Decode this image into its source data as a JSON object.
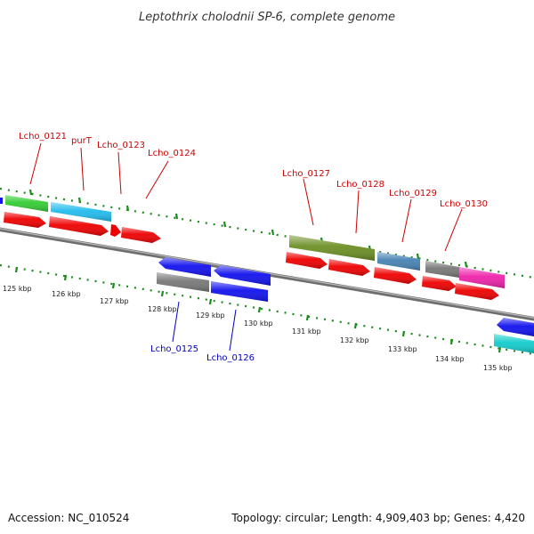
{
  "title": "Leptothrix cholodnii SP-6, complete genome",
  "footer": {
    "accession": "Accession: NC_010524",
    "topology": "Topology: circular; Length: 4,909,403 bp; Genes: 4,420"
  },
  "colors": {
    "label_forward": "#cc0000",
    "label_reverse": "#0000bb",
    "tick_green": "#1a8a1a",
    "backbone": "#777777"
  },
  "ticks": [
    {
      "label": "125 kbp"
    },
    {
      "label": "126 kbp"
    },
    {
      "label": "127 kbp"
    },
    {
      "label": "128 kbp"
    },
    {
      "label": "129 kbp"
    },
    {
      "label": "130 kbp"
    },
    {
      "label": "131 kbp"
    },
    {
      "label": "132 kbp"
    },
    {
      "label": "133 kbp"
    },
    {
      "label": "134 kbp"
    },
    {
      "label": "135 kbp"
    }
  ],
  "gene_labels": [
    {
      "text": "Lcho_0121",
      "strand": "forward"
    },
    {
      "text": "purT",
      "strand": "forward"
    },
    {
      "text": "Lcho_0123",
      "strand": "forward"
    },
    {
      "text": "Lcho_0124",
      "strand": "forward"
    },
    {
      "text": "Lcho_0127",
      "strand": "forward"
    },
    {
      "text": "Lcho_0128",
      "strand": "forward"
    },
    {
      "text": "Lcho_0129",
      "strand": "forward"
    },
    {
      "text": "Lcho_0130",
      "strand": "forward"
    },
    {
      "text": "Lcho_0125",
      "strand": "reverse"
    },
    {
      "text": "Lcho_0126",
      "strand": "reverse"
    }
  ]
}
